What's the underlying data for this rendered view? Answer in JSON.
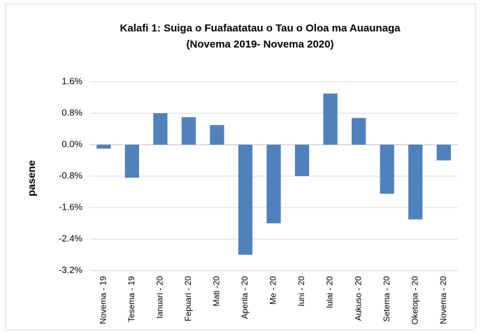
{
  "chart_data": {
    "type": "bar",
    "title": "Kalafi 1: Suiga o Fuafaatatau o Tau o Oloa ma Auaunaga",
    "subtitle": "(Novema 2019- Novema 2020)",
    "y_label": "pasene",
    "categories": [
      "Novema - 19",
      "Tesema - 19",
      "Ianuari - 20",
      "Fepuari - 20",
      "Mati -20",
      "Aperila - 20",
      "Me - 20",
      "Iuni - 20",
      "Iulai - 20",
      "Aukuso - 20",
      "Setema - 20",
      "Oketopa - 20",
      "Novema - 20"
    ],
    "values": [
      -0.1,
      -0.84,
      0.8,
      0.7,
      0.5,
      -2.8,
      -2.0,
      -0.8,
      1.3,
      0.68,
      -1.25,
      -1.9,
      -0.4
    ],
    "color": "#4f81bd",
    "ylim": [
      -3.2,
      1.6
    ],
    "yticks": [
      {
        "value": -3.2,
        "label": "-3.2%"
      },
      {
        "value": -2.4,
        "label": "-2.4%"
      },
      {
        "value": -1.6,
        "label": "-1.6%"
      },
      {
        "value": -0.8,
        "label": "-0.8%"
      },
      {
        "value": 0,
        "label": "0.0%"
      },
      {
        "value": 0.8,
        "label": "0.8%"
      },
      {
        "value": 1.6,
        "label": "1.6%"
      }
    ],
    "grid": true
  }
}
